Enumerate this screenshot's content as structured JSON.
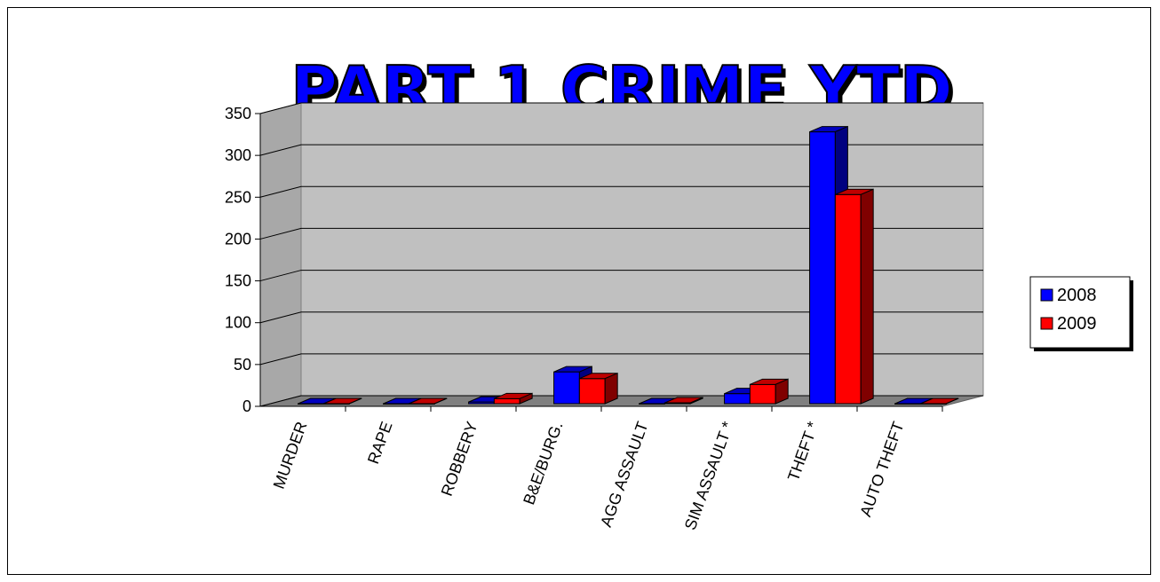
{
  "chart_data": {
    "type": "bar",
    "title": "PART 1 CRIME YTD",
    "categories": [
      "MURDER",
      "RAPE",
      "ROBBERY",
      "B&E/BURG.",
      "AGG ASSAULT",
      "SIM ASSAULT *",
      "THEFT *",
      "AUTO THEFT"
    ],
    "series": [
      {
        "name": "2008",
        "color": "#0000FF",
        "values": [
          0,
          0,
          2,
          38,
          0,
          12,
          325,
          0
        ]
      },
      {
        "name": "2009",
        "color": "#FF0000",
        "values": [
          0,
          0,
          6,
          30,
          1,
          23,
          250,
          0
        ]
      }
    ],
    "ylim": [
      0,
      350
    ],
    "yticks": [
      0,
      50,
      100,
      150,
      200,
      250,
      300,
      350
    ],
    "grid": true,
    "legend_position": "right",
    "three_d": true,
    "colors": {
      "wall": "#C0C0C0",
      "title_fill": "#0000FF",
      "title_shadow": "#000000"
    }
  }
}
